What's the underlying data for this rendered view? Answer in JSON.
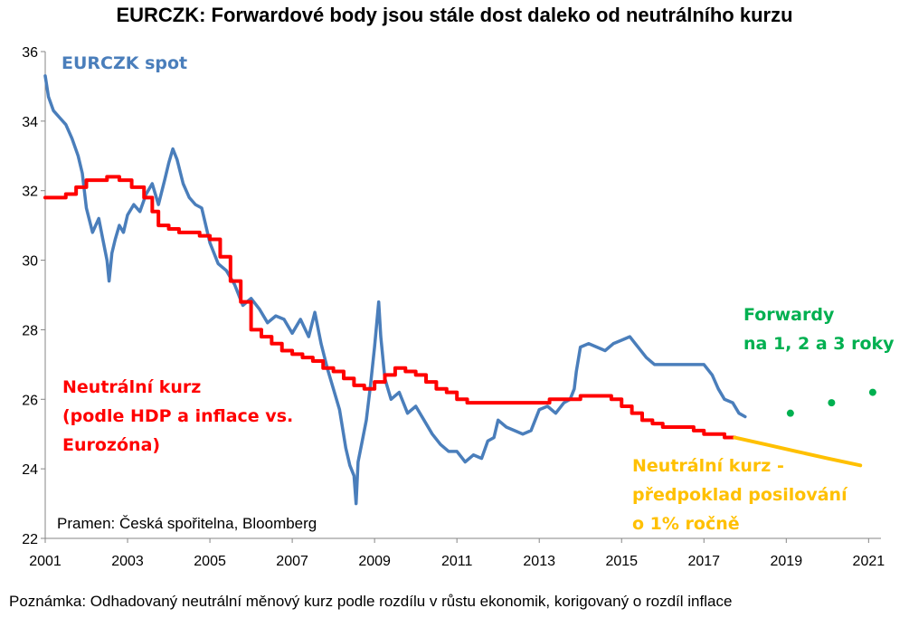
{
  "chart_data": {
    "type": "line",
    "title": "EURCZK: Forwardové body jsou stále dost daleko od neutrálního kurzu",
    "xlim": [
      2001,
      2021.3
    ],
    "ylim": [
      22,
      36
    ],
    "x_ticks": [
      2001,
      2003,
      2005,
      2007,
      2009,
      2011,
      2013,
      2015,
      2017,
      2019,
      2021
    ],
    "y_ticks": [
      22,
      24,
      26,
      28,
      30,
      32,
      34,
      36
    ],
    "grid": false,
    "colors": {
      "spot": "#4a7ebb",
      "neutral": "#ff0000",
      "projection": "#ffc000",
      "forwards": "#00b050"
    },
    "series": [
      {
        "name": "EURCZK spot",
        "role": "spot",
        "x": [
          2001.0,
          2001.08,
          2001.2,
          2001.35,
          2001.5,
          2001.65,
          2001.8,
          2001.9,
          2002.0,
          2002.15,
          2002.3,
          2002.4,
          2002.5,
          2002.55,
          2002.62,
          2002.7,
          2002.8,
          2002.9,
          2003.0,
          2003.15,
          2003.3,
          2003.45,
          2003.6,
          2003.75,
          2003.9,
          2004.0,
          2004.1,
          2004.2,
          2004.35,
          2004.5,
          2004.65,
          2004.8,
          2005.0,
          2005.2,
          2005.4,
          2005.6,
          2005.8,
          2006.0,
          2006.2,
          2006.4,
          2006.6,
          2006.8,
          2007.0,
          2007.2,
          2007.4,
          2007.55,
          2007.7,
          2007.85,
          2008.0,
          2008.15,
          2008.3,
          2008.4,
          2008.5,
          2008.55,
          2008.6,
          2008.7,
          2008.8,
          2008.9,
          2009.0,
          2009.1,
          2009.15,
          2009.25,
          2009.4,
          2009.6,
          2009.8,
          2010.0,
          2010.2,
          2010.4,
          2010.6,
          2010.8,
          2011.0,
          2011.2,
          2011.4,
          2011.6,
          2011.75,
          2011.9,
          2012.0,
          2012.2,
          2012.4,
          2012.6,
          2012.8,
          2013.0,
          2013.2,
          2013.4,
          2013.6,
          2013.75,
          2013.85,
          2013.9,
          2014.0,
          2014.2,
          2014.4,
          2014.6,
          2014.8,
          2015.0,
          2015.2,
          2015.4,
          2015.6,
          2015.8,
          2016.0,
          2016.3,
          2016.6,
          2016.9,
          2017.0,
          2017.2,
          2017.35,
          2017.5,
          2017.7,
          2017.85,
          2018.0
        ],
        "values": [
          35.3,
          34.7,
          34.3,
          34.1,
          33.9,
          33.5,
          33.0,
          32.5,
          31.5,
          30.8,
          31.2,
          30.6,
          30.0,
          29.4,
          30.2,
          30.6,
          31.0,
          30.8,
          31.3,
          31.6,
          31.4,
          31.9,
          32.2,
          31.6,
          32.3,
          32.8,
          33.2,
          32.9,
          32.2,
          31.8,
          31.6,
          31.5,
          30.5,
          29.9,
          29.7,
          29.3,
          28.7,
          28.9,
          28.6,
          28.2,
          28.4,
          28.3,
          27.9,
          28.3,
          27.8,
          28.5,
          27.6,
          26.9,
          26.3,
          25.7,
          24.6,
          24.1,
          23.8,
          23.0,
          24.2,
          24.8,
          25.4,
          26.4,
          27.5,
          28.8,
          27.8,
          26.6,
          26.0,
          26.2,
          25.6,
          25.8,
          25.4,
          25.0,
          24.7,
          24.5,
          24.5,
          24.2,
          24.4,
          24.3,
          24.8,
          24.9,
          25.4,
          25.2,
          25.1,
          25.0,
          25.1,
          25.7,
          25.8,
          25.6,
          25.9,
          26.0,
          26.3,
          26.8,
          27.5,
          27.6,
          27.5,
          27.4,
          27.6,
          27.7,
          27.8,
          27.5,
          27.2,
          27.0,
          27.0,
          27.0,
          27.0,
          27.0,
          27.0,
          26.7,
          26.3,
          26.0,
          25.9,
          25.6,
          25.5
        ]
      },
      {
        "name": "Neutrální kurz (podle HDP a inflace vs. Eurozóna)",
        "role": "neutral",
        "x": [
          2001.0,
          2001.5,
          2001.75,
          2002.0,
          2002.25,
          2002.5,
          2002.8,
          2003.1,
          2003.4,
          2003.6,
          2003.75,
          2004.0,
          2004.25,
          2004.5,
          2004.75,
          2005.0,
          2005.25,
          2005.5,
          2005.75,
          2006.0,
          2006.25,
          2006.5,
          2006.75,
          2007.0,
          2007.25,
          2007.5,
          2007.75,
          2008.0,
          2008.25,
          2008.5,
          2008.75,
          2009.0,
          2009.25,
          2009.5,
          2009.75,
          2010.0,
          2010.25,
          2010.5,
          2010.75,
          2011.0,
          2011.25,
          2011.5,
          2011.75,
          2012.0,
          2012.25,
          2012.5,
          2012.75,
          2013.0,
          2013.25,
          2013.5,
          2013.75,
          2014.0,
          2014.25,
          2014.5,
          2014.75,
          2015.0,
          2015.25,
          2015.5,
          2015.75,
          2016.0,
          2016.25,
          2016.5,
          2016.75,
          2017.0,
          2017.25,
          2017.5,
          2017.75
        ],
        "values": [
          31.8,
          31.9,
          32.1,
          32.3,
          32.3,
          32.4,
          32.3,
          32.1,
          31.8,
          31.4,
          31.0,
          30.9,
          30.8,
          30.8,
          30.7,
          30.6,
          30.1,
          29.4,
          28.8,
          28.0,
          27.8,
          27.6,
          27.4,
          27.3,
          27.2,
          27.1,
          26.9,
          26.8,
          26.6,
          26.4,
          26.3,
          26.5,
          26.7,
          26.9,
          26.8,
          26.7,
          26.5,
          26.3,
          26.2,
          26.0,
          25.9,
          25.9,
          25.9,
          25.9,
          25.9,
          25.9,
          25.9,
          25.9,
          26.0,
          26.0,
          26.0,
          26.1,
          26.1,
          26.1,
          26.0,
          25.8,
          25.6,
          25.4,
          25.3,
          25.2,
          25.2,
          25.2,
          25.1,
          25.0,
          25.0,
          24.9,
          24.9
        ]
      },
      {
        "name": "Neutrální kurz - předpoklad posilování o 1% ročně",
        "role": "projection",
        "x": [
          2017.75,
          2018.5,
          2019.25,
          2020.0,
          2020.8
        ],
        "values": [
          24.9,
          24.7,
          24.5,
          24.3,
          24.1
        ]
      },
      {
        "name": "Forwardy na 1, 2 a 3 roky",
        "role": "forwards",
        "x": [
          2019.1,
          2020.1,
          2021.1
        ],
        "values": [
          25.6,
          25.9,
          26.2
        ]
      }
    ]
  },
  "annotations": {
    "spot_label": "EURCZK spot",
    "forwards_line1": "Forwardy",
    "forwards_line2": "na 1, 2 a 3 roky",
    "neutral_line1": "Neutrální kurz",
    "neutral_line2": "(podle HDP a inflace vs.",
    "neutral_line3": "Eurozóna)",
    "projection_line1": "Neutrální kurz -",
    "projection_line2": "předpoklad posilování",
    "projection_line3": "o 1% ročně",
    "source": "Pramen: Česká spořitelna, Bloomberg"
  },
  "footnote": "Poznámka: Odhadovaný neutrální měnový kurz podle rozdílu v růstu ekonomik, korigovaný o rozdíl inflace"
}
